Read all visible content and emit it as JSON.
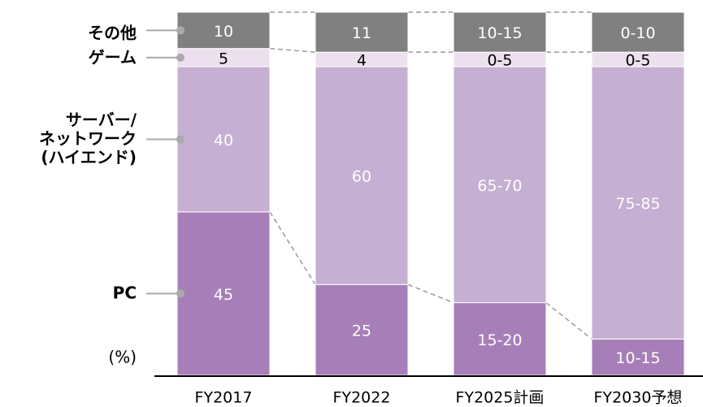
{
  "chart_data": {
    "type": "stacked_bar",
    "y_label": "(%)",
    "categories": [
      "FY2017",
      "FY2022",
      "FY2025計画",
      "FY2030予想"
    ],
    "ylim": [
      0,
      100
    ],
    "series": [
      {
        "name": "PC",
        "color": "#a77fb8",
        "label_color": "#ffffff",
        "values": [
          45,
          25,
          20,
          10
        ],
        "value_labels": [
          "45",
          "25",
          "15-20",
          "10-15"
        ]
      },
      {
        "name": "サーバー/\nネットワーク\n(ハイエンド)",
        "color": "#c5afd2",
        "label_color": "#ffffff",
        "values": [
          40,
          60,
          65,
          75
        ],
        "value_labels": [
          "40",
          "60",
          "65-70",
          "75-85"
        ]
      },
      {
        "name": "ゲーム",
        "color": "#ede0ee",
        "label_color": "#000000",
        "values": [
          5,
          4,
          4,
          4
        ],
        "value_labels": [
          "5",
          "4",
          "0-5",
          "0-5"
        ]
      },
      {
        "name": "その他",
        "color": "#808080",
        "label_color": "#ffffff",
        "values": [
          10,
          11,
          11,
          11
        ],
        "value_labels": [
          "10",
          "11",
          "10-15",
          "0-10"
        ]
      }
    ]
  }
}
